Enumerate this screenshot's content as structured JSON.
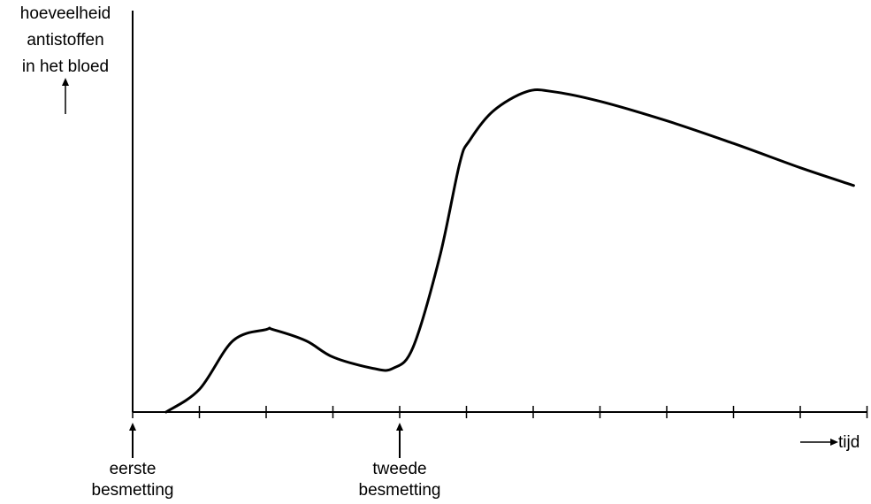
{
  "chart_data": {
    "type": "line",
    "ylabel": [
      "hoeveelheid",
      "antistoffen",
      "in het bloed"
    ],
    "xlabel": "tijd",
    "x_ticks": [
      0,
      1,
      2,
      3,
      4,
      5,
      6,
      7,
      8,
      9,
      10,
      11
    ],
    "annotations": [
      {
        "label": [
          "eerste",
          "besmetting"
        ],
        "x": 0
      },
      {
        "label": [
          "tweede",
          "besmetting"
        ],
        "x": 4
      }
    ],
    "grid": false,
    "ylim": [
      0,
      100
    ],
    "xlim": [
      0,
      11
    ],
    "series": [
      {
        "x": [
          0.5,
          1.0,
          1.5,
          2.0,
          2.1,
          2.6,
          3.0,
          3.6,
          3.9,
          4.2,
          4.6,
          4.9,
          5.05,
          5.4,
          5.9,
          6.3,
          7.0,
          8.0,
          9.0,
          10.0,
          10.8
        ],
        "y": [
          0,
          7,
          22,
          25.5,
          25.5,
          22,
          17,
          13.5,
          13.5,
          20,
          48,
          77,
          84,
          93,
          99,
          99,
          96,
          90,
          83,
          75.5,
          70
        ]
      }
    ]
  }
}
